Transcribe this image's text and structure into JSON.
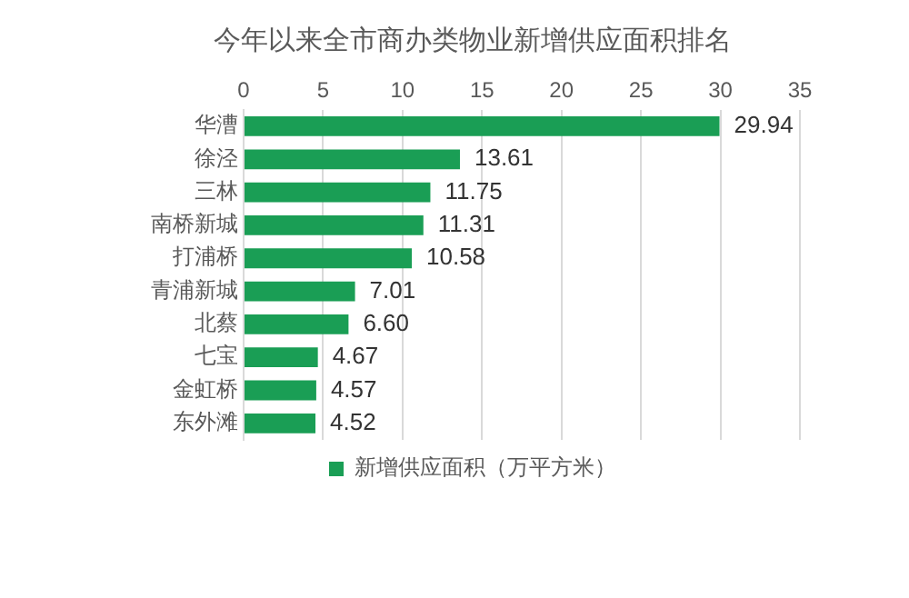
{
  "chart_data": {
    "type": "bar",
    "orientation": "horizontal",
    "title": "今年以来全市商办类物业新增供应面积排名",
    "categories": [
      "华漕",
      "徐泾",
      "三林",
      "南桥新城",
      "打浦桥",
      "青浦新城",
      "北蔡",
      "七宝",
      "金虹桥",
      "东外滩"
    ],
    "series": [
      {
        "name": "新增供应面积（万平方米）",
        "color": "#1a9e55",
        "values": [
          29.94,
          13.61,
          11.75,
          11.31,
          10.58,
          7.01,
          6.6,
          4.67,
          4.57,
          4.52
        ],
        "value_labels": [
          "29.94",
          "13.61",
          "11.75",
          "11.31",
          "10.58",
          "7.01",
          "6.60",
          "4.67",
          "4.57",
          "4.52"
        ]
      }
    ],
    "xlim": [
      0,
      35
    ],
    "xticks": [
      0,
      5,
      10,
      15,
      20,
      25,
      30,
      35
    ],
    "grid": "x",
    "legend": "bottom"
  }
}
